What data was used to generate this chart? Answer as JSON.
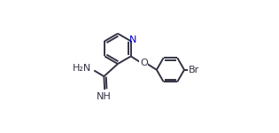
{
  "bg_color": "#ffffff",
  "bond_color": "#333344",
  "atom_color_N": "#0000cc",
  "line_width": 1.4,
  "figsize": [
    3.15,
    1.5
  ],
  "dpi": 100,
  "xlim": [
    0.0,
    1.0
  ],
  "ylim": [
    0.0,
    1.0
  ]
}
